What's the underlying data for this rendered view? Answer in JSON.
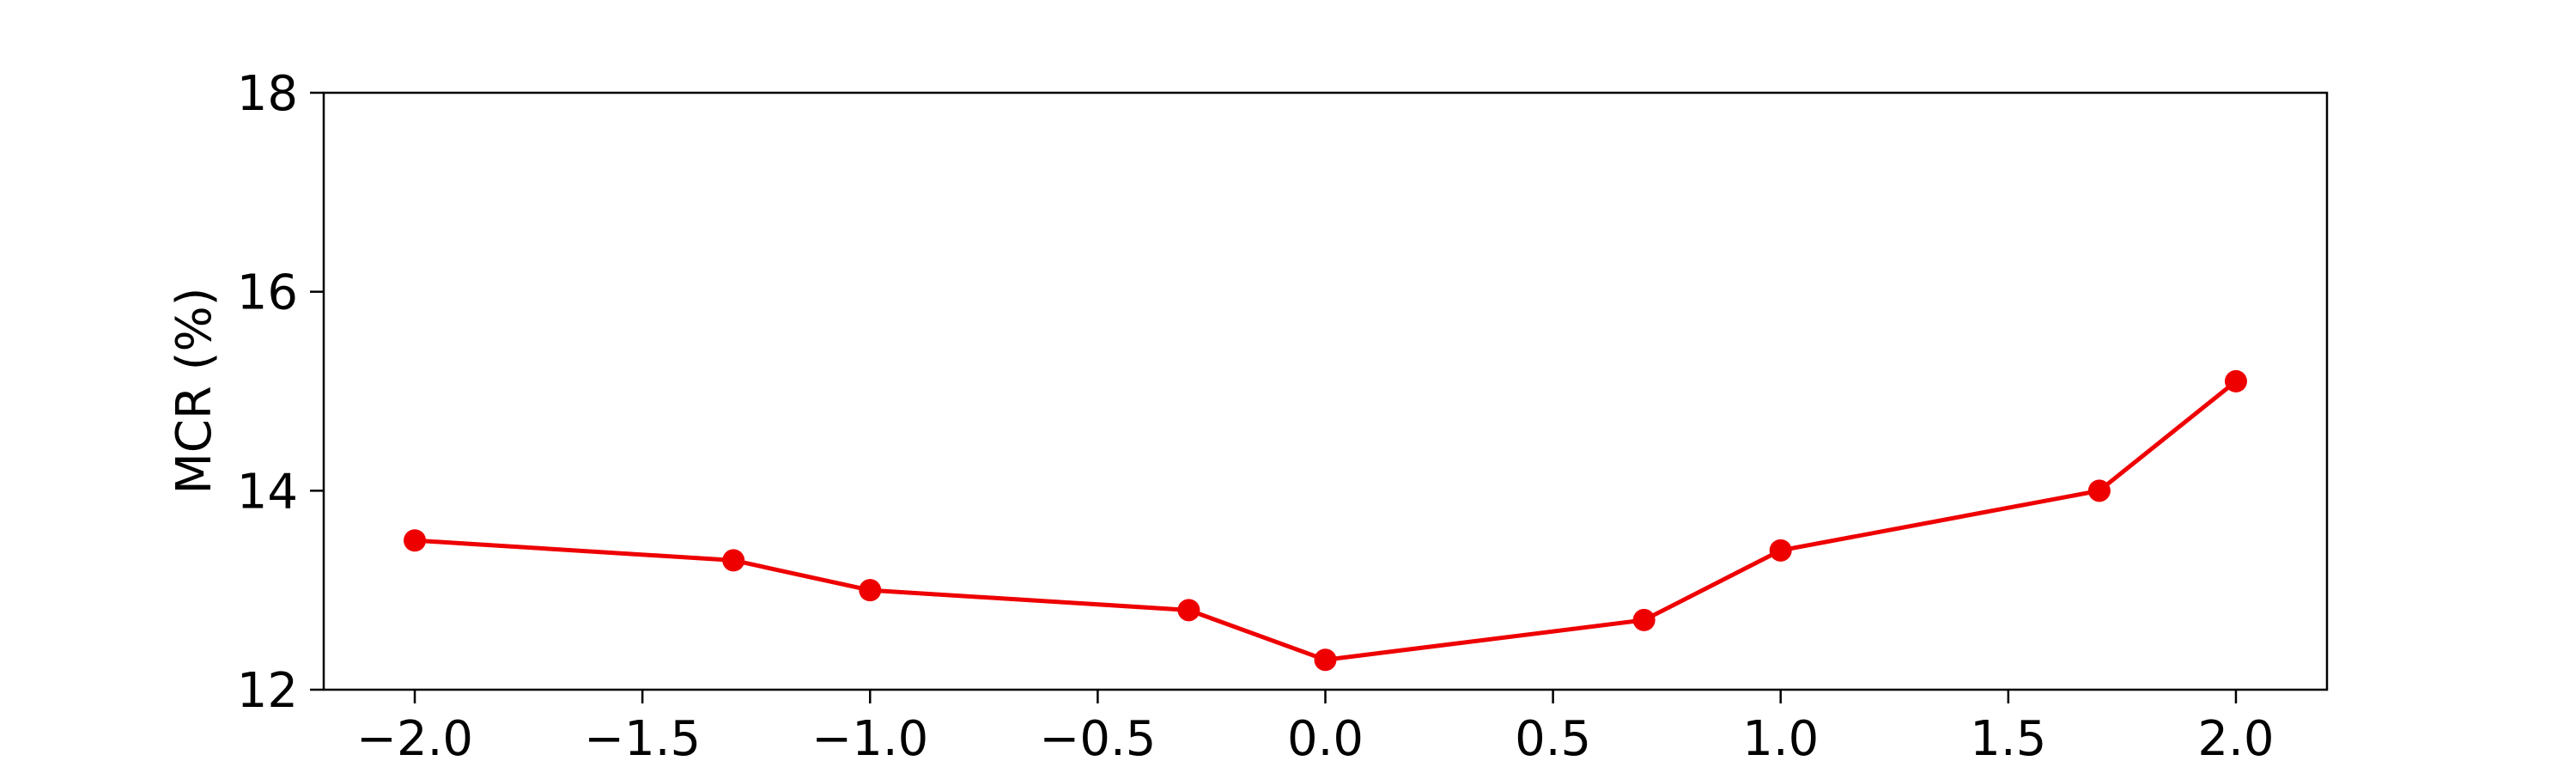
{
  "chart_data": {
    "type": "line",
    "title": "",
    "xlabel": "",
    "ylabel": "MCR (%)",
    "xlim": [
      -2.2,
      2.2
    ],
    "ylim": [
      12,
      18
    ],
    "xticks": [
      -2.0,
      -1.5,
      -1.0,
      -0.5,
      0.0,
      0.5,
      1.0,
      1.5,
      2.0
    ],
    "xtick_labels": [
      "−2.0",
      "−1.5",
      "−1.0",
      "−0.5",
      "0.0",
      "0.5",
      "1.0",
      "1.5",
      "2.0"
    ],
    "yticks": [
      12,
      14,
      16,
      18
    ],
    "ytick_labels": [
      "12",
      "14",
      "16",
      "18"
    ],
    "grid": false,
    "series": [
      {
        "color": "#ee0000",
        "marker": "circle",
        "x": [
          -2.0,
          -1.3,
          -1.0,
          -0.3,
          0.0,
          0.7,
          1.0,
          1.7,
          2.0
        ],
        "y": [
          13.5,
          13.3,
          13.0,
          12.8,
          12.3,
          12.7,
          13.4,
          14.0,
          15.1
        ]
      }
    ]
  }
}
